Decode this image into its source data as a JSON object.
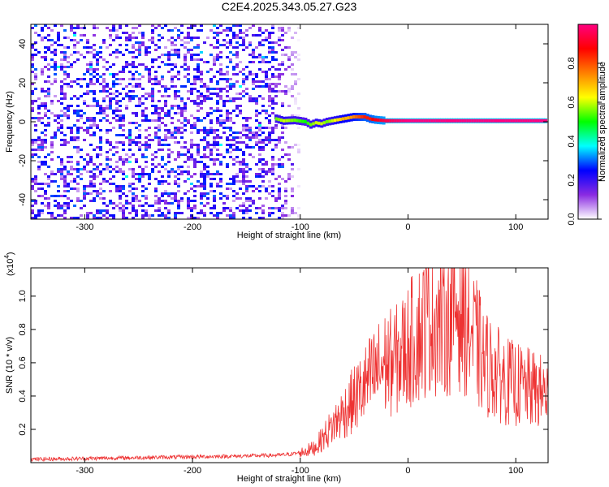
{
  "title": "C2E4.2025.343.05.27.G23",
  "chart_data": [
    {
      "type": "heatmap",
      "title": "C2E4.2025.343.05.27.G23",
      "xlabel": "Height of straight line (km)",
      "ylabel": "Frequency (Hz)",
      "xlim": [
        -350,
        130
      ],
      "ylim": [
        -50,
        50
      ],
      "xticks": [
        -300,
        -200,
        -100,
        0,
        100
      ],
      "yticks": [
        -40,
        -20,
        0,
        20,
        40
      ],
      "colorbar": {
        "label": "Normalized spectral amplitude",
        "range": [
          0.0,
          1.0
        ],
        "ticks": [
          "0.0",
          "0.2",
          "0.4",
          "0.6",
          "0.8"
        ],
        "stops": [
          "#ffffff",
          "#8a2be2",
          "#0000ff",
          "#00ffff",
          "#00ff00",
          "#ffff00",
          "#ff8000",
          "#ff0000",
          "#ff0080"
        ]
      },
      "noise_region_x": [
        -350,
        -100
      ],
      "signal_track": [
        {
          "x": -122,
          "freq": 1.5,
          "amp": 0.55
        },
        {
          "x": -115,
          "freq": 0.5,
          "amp": 0.6
        },
        {
          "x": -105,
          "freq": 0.8,
          "amp": 0.55
        },
        {
          "x": -95,
          "freq": 0.0,
          "amp": 0.5
        },
        {
          "x": -90,
          "freq": -1.5,
          "amp": 0.55
        },
        {
          "x": -85,
          "freq": -0.5,
          "amp": 0.6
        },
        {
          "x": -80,
          "freq": -1.0,
          "amp": 0.6
        },
        {
          "x": -75,
          "freq": 0.0,
          "amp": 0.55
        },
        {
          "x": -70,
          "freq": 0.5,
          "amp": 0.6
        },
        {
          "x": -65,
          "freq": 1.0,
          "amp": 0.65
        },
        {
          "x": -60,
          "freq": 1.5,
          "amp": 0.7
        },
        {
          "x": -55,
          "freq": 2.0,
          "amp": 0.7
        },
        {
          "x": -50,
          "freq": 2.5,
          "amp": 0.75
        },
        {
          "x": -45,
          "freq": 2.5,
          "amp": 0.8
        },
        {
          "x": -40,
          "freq": 2.5,
          "amp": 0.85
        },
        {
          "x": -35,
          "freq": 1.5,
          "amp": 0.85
        },
        {
          "x": -30,
          "freq": 1.0,
          "amp": 0.9
        },
        {
          "x": -20,
          "freq": 0.5,
          "amp": 0.95
        },
        {
          "x": 0,
          "freq": 0.5,
          "amp": 1.0
        },
        {
          "x": 130,
          "freq": 0.5,
          "amp": 1.0
        }
      ]
    },
    {
      "type": "line",
      "xlabel": "Height of straight line (km)",
      "ylabel": "SNR (10 * v/v)",
      "y_multiplier_label": "(x10",
      "y_multiplier_exp": "4",
      "y_multiplier_close": ")",
      "xlim": [
        -350,
        130
      ],
      "ylim": [
        0,
        1.17
      ],
      "xticks": [
        -300,
        -200,
        -100,
        0,
        100
      ],
      "yticks": [
        0.2,
        0.4,
        0.6,
        0.8,
        1.0
      ],
      "ytick_labels": [
        "0.2",
        "0.4",
        "0.6",
        "0.8",
        "1.0"
      ],
      "line_color": "#ee3333",
      "series": [
        {
          "name": "SNR",
          "x": [
            -350,
            -300,
            -250,
            -200,
            -150,
            -120,
            -110,
            -100,
            -95,
            -90,
            -85,
            -80,
            -75,
            -70,
            -65,
            -60,
            -55,
            -50,
            -45,
            -40,
            -35,
            -30,
            -25,
            -20,
            -15,
            -10,
            -5,
            0,
            5,
            10,
            15,
            20,
            25,
            30,
            35,
            40,
            45,
            50,
            55,
            60,
            65,
            70,
            75,
            80,
            85,
            90,
            95,
            100,
            105,
            110,
            115,
            120,
            125,
            130
          ],
          "y": [
            0.02,
            0.025,
            0.03,
            0.035,
            0.04,
            0.045,
            0.05,
            0.06,
            0.07,
            0.08,
            0.1,
            0.14,
            0.18,
            0.22,
            0.26,
            0.3,
            0.34,
            0.38,
            0.42,
            0.46,
            0.5,
            0.54,
            0.57,
            0.6,
            0.6,
            0.62,
            0.66,
            0.7,
            0.74,
            0.78,
            0.82,
            0.9,
            0.88,
            0.84,
            0.86,
            0.9,
            0.95,
            0.92,
            0.85,
            0.75,
            0.7,
            0.6,
            0.58,
            0.55,
            0.52,
            0.5,
            0.48,
            0.47,
            0.46,
            0.45,
            0.44,
            0.43,
            0.42,
            0.42
          ]
        }
      ]
    }
  ]
}
